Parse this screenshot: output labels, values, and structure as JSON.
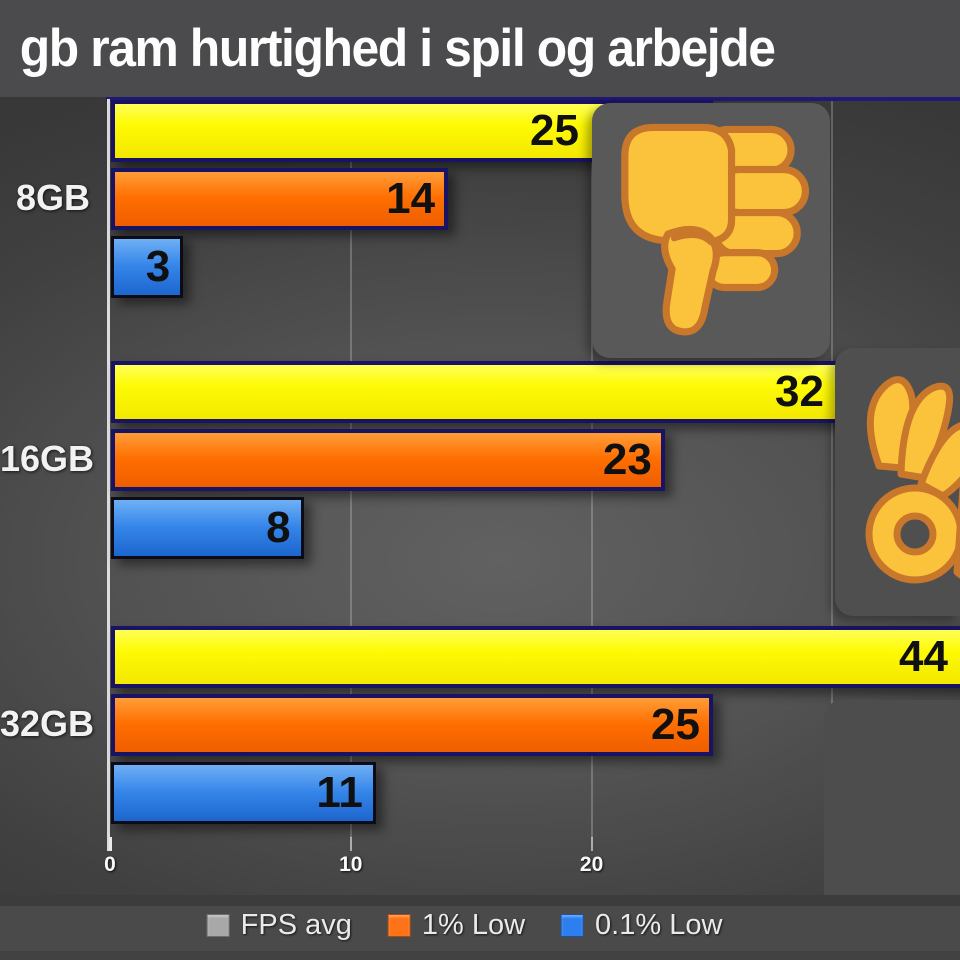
{
  "title": "gb ram hurtighed i spil og arbejde",
  "chart_data": {
    "type": "bar",
    "orientation": "horizontal",
    "title": "gb ram hurtighed i spil og arbejde",
    "categories": [
      "8GB",
      "16GB",
      "32GB"
    ],
    "series": [
      {
        "name": "FPS avg",
        "values": [
          25,
          32,
          44
        ],
        "bar_color": "#FDF400",
        "legend_color": "#A8A8A8"
      },
      {
        "name": "1% Low",
        "values": [
          14,
          23,
          25
        ],
        "bar_color": "#FF6E00",
        "legend_color": "#FF7318"
      },
      {
        "name": "0.1% Low",
        "values": [
          3,
          8,
          11
        ],
        "bar_color": "#2E7DE6",
        "legend_color": "#2D7FF0"
      }
    ],
    "x_ticks": [
      "0",
      "10",
      "20"
    ],
    "x_tick_values": [
      0,
      10,
      20
    ],
    "xlim": [
      0,
      35
    ],
    "grid": true,
    "legend_position": "bottom",
    "value_label_color": "#101010",
    "annotations": [
      {
        "icon": "thumbs-down",
        "category": "8GB"
      },
      {
        "icon": "ok-hand",
        "category": "16GB"
      }
    ],
    "emoji_color": "#FBC33C"
  }
}
